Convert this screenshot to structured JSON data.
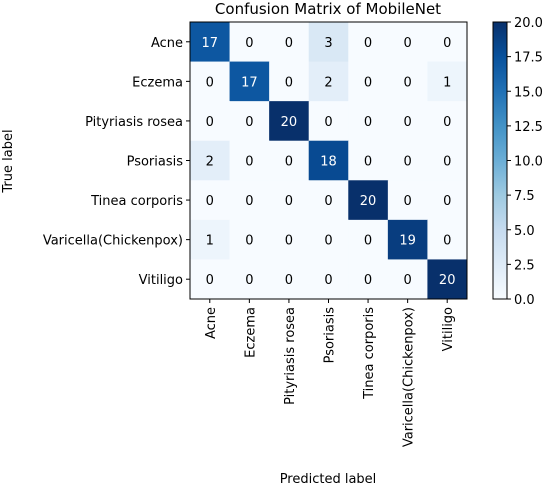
{
  "chart_data": {
    "type": "heatmap",
    "title": "Confusion Matrix of MobileNet",
    "xlabel": "Predicted label",
    "ylabel": "True label",
    "row_labels": [
      "Acne",
      "Eczema",
      "Pityriasis rosea",
      "Psoriasis",
      "Tinea corporis",
      "Varicella(Chickenpox)",
      "Vitiligo"
    ],
    "col_labels": [
      "Acne",
      "Eczema",
      "Pityriasis rosea",
      "Psoriasis",
      "Tinea corporis",
      "Varicella(Chickenpox)",
      "Vitiligo"
    ],
    "matrix": [
      [
        17,
        0,
        0,
        3,
        0,
        0,
        0
      ],
      [
        0,
        17,
        0,
        2,
        0,
        0,
        1
      ],
      [
        0,
        0,
        20,
        0,
        0,
        0,
        0
      ],
      [
        2,
        0,
        0,
        18,
        0,
        0,
        0
      ],
      [
        0,
        0,
        0,
        0,
        20,
        0,
        0
      ],
      [
        1,
        0,
        0,
        0,
        0,
        19,
        0
      ],
      [
        0,
        0,
        0,
        0,
        0,
        0,
        20
      ]
    ],
    "colorbar": {
      "range": [
        0.0,
        20.0
      ],
      "ticks": [
        "0.0",
        "2.5",
        "5.0",
        "7.5",
        "10.0",
        "12.5",
        "15.0",
        "17.5",
        "20.0"
      ],
      "colormap": "Blues"
    }
  }
}
